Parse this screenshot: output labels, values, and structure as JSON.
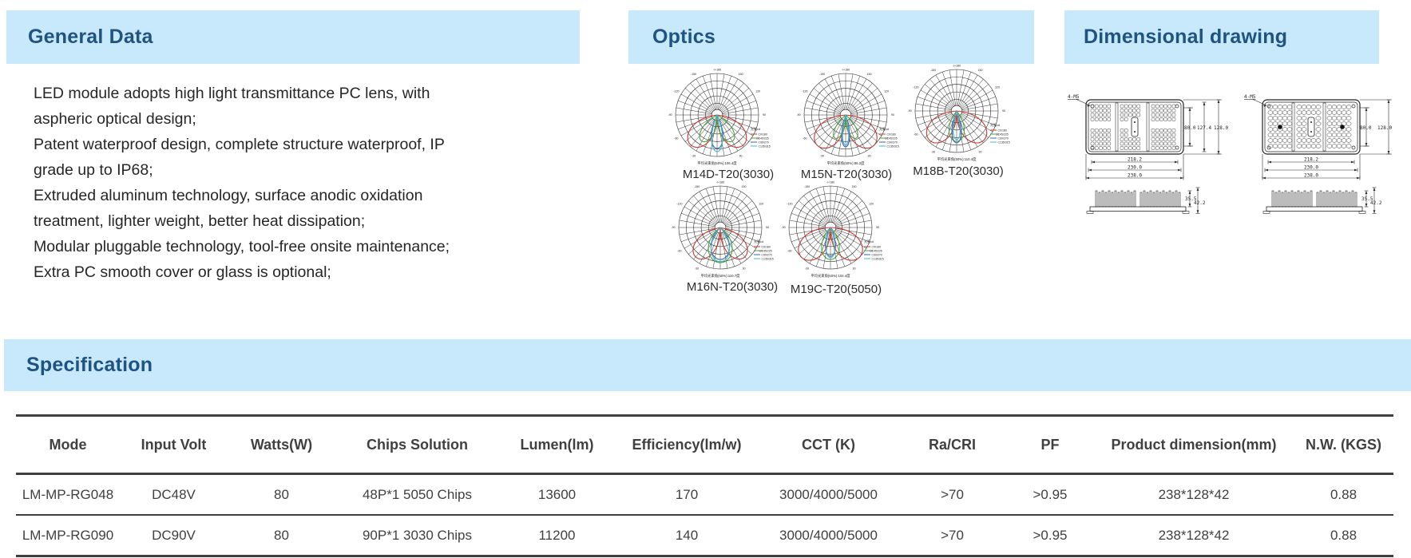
{
  "page": {
    "colors": {
      "section_bar": "#c7e9fb",
      "section_title": "#1f5381",
      "body_text": "#262626",
      "table_line": "#3f3f3f",
      "curve_red": "#c93a32",
      "curve_green": "#4aa341",
      "curve_blue": "#3a63ad",
      "curve_cyan": "#47b6cf"
    }
  },
  "sections": {
    "general_data": {
      "title": "General Data",
      "lines": [
        "LED module adopts high light transmittance PC lens, with",
        "aspheric optical design;",
        "Patent waterproof design, complete structure waterproof, IP",
        "grade up to IP68;",
        "Extruded aluminum technology, surface anodic oxidation",
        "treatment, lighter weight, better heat dissipation;",
        "Modular pluggable technology, tool-free onsite maintenance;",
        "Extra PC smooth cover or glass is optional;"
      ]
    },
    "optics": {
      "title": "Optics",
      "polar_axis_labels": [
        "-/+180",
        "150",
        "120",
        "90",
        "60",
        "30"
      ],
      "legend_title": "光强cd",
      "legend_planes": [
        "C0/180",
        "C45/225",
        "C90/270",
        "C135/315"
      ],
      "diagrams": [
        {
          "label": "M14D-T20(3030)",
          "caption": "平均光束角(50%):106.4度"
        },
        {
          "label": "M15N-T20(3030)",
          "caption": "平均光束角(50%):86.2度"
        },
        {
          "label": "M18B-T20(3030)",
          "caption": "平均光束角(50%):110.4度"
        },
        {
          "label": "M16N-T20(3030)",
          "caption": "平均光束角(50%):110.7度"
        },
        {
          "label": "M19C-T20(5050)",
          "caption": "平均光束角(50%):104.4度"
        }
      ]
    },
    "dimensional": {
      "title": "Dimensional drawing",
      "drawings": [
        {
          "screw_label": "4-M5",
          "bottom_dims": [
            "218.2",
            "230.0",
            "238.0"
          ],
          "right_dims": [
            "80.0",
            "127.4",
            "128.0"
          ],
          "side_dims": [
            "35.5",
            "42.2"
          ]
        },
        {
          "screw_label": "4-M5",
          "bottom_dims": [
            "218.2",
            "230.0",
            "238.0"
          ],
          "right_dims": [
            "80.0",
            "128.0"
          ],
          "side_dims": [
            "35.5",
            "42.2"
          ]
        }
      ]
    },
    "specification": {
      "title": "Specification",
      "columns": [
        "Mode",
        "Input Volt",
        "Watts(W)",
        "Chips Solution",
        "Lumen(lm)",
        "Efficiency(lm/w)",
        "CCT (K)",
        "Ra/CRI",
        "PF",
        "Product dimension(mm)",
        "N.W. (KGS)"
      ],
      "rows": [
        [
          "LM-MP-RG048",
          "DC48V",
          "80",
          "48P*1 5050 Chips",
          "13600",
          "170",
          "3000/4000/5000",
          ">70",
          ">0.95",
          "238*128*42",
          "0.88"
        ],
        [
          "LM-MP-RG090",
          "DC90V",
          "80",
          "90P*1 3030 Chips",
          "11200",
          "140",
          "3000/4000/5000",
          ">70",
          ">0.95",
          "238*128*42",
          "0.88"
        ]
      ]
    }
  }
}
